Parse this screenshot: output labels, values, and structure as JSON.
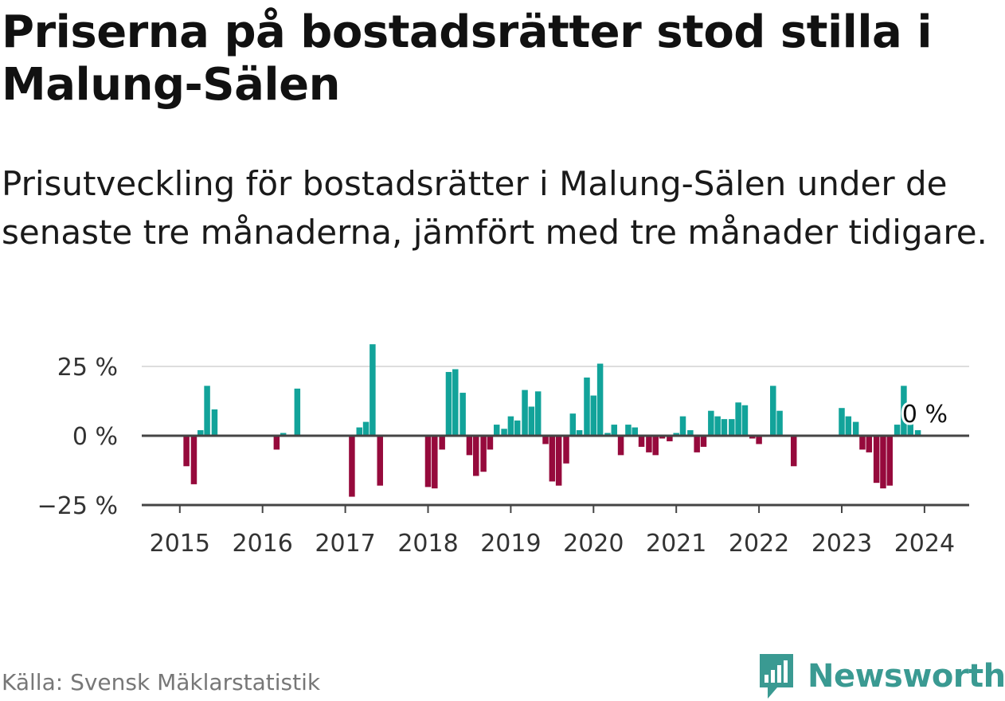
{
  "title": "Priserna på bostadsrätter stod stilla i Malung-Sälen",
  "subtitle": "Prisutveckling för bostadsrätter i Malung-Sälen under de senaste tre månaderna, jämfört med tre månader tidigare.",
  "source": "Källa: Svensk Mäklarstatistik",
  "brand": "Newsworthy",
  "colors": {
    "positive": "#12a39a",
    "negative": "#960a3c",
    "brand": "#3a9a92",
    "axis": "#444444",
    "grid": "#dddddd"
  },
  "chart_data": {
    "type": "bar",
    "title": "Priserna på bostadsrätter stod stilla i Malung-Sälen",
    "xlabel": "",
    "ylabel": "",
    "ylim": [
      -25,
      35
    ],
    "x_range": [
      2014.54,
      2024.54
    ],
    "y_ticks": [
      {
        "value": 25,
        "label": "25 %"
      },
      {
        "value": 0,
        "label": "0 %"
      },
      {
        "value": -25,
        "label": "−25 %"
      }
    ],
    "x_ticks": [
      {
        "value": 2015,
        "label": "2015"
      },
      {
        "value": 2016,
        "label": "2016"
      },
      {
        "value": 2017,
        "label": "2017"
      },
      {
        "value": 2018,
        "label": "2018"
      },
      {
        "value": 2019,
        "label": "2019"
      },
      {
        "value": 2020,
        "label": "2020"
      },
      {
        "value": 2021,
        "label": "2021"
      },
      {
        "value": 2022,
        "label": "2022"
      },
      {
        "value": 2023,
        "label": "2023"
      },
      {
        "value": 2024,
        "label": "2024"
      }
    ],
    "annotation": {
      "label": "0 %",
      "x": 2024.0,
      "y": 0
    },
    "series": [
      {
        "name": "Prisutveckling",
        "points": [
          {
            "x": 2015.08,
            "y": -11
          },
          {
            "x": 2015.17,
            "y": -17.5
          },
          {
            "x": 2015.25,
            "y": 2
          },
          {
            "x": 2015.33,
            "y": 18
          },
          {
            "x": 2015.42,
            "y": 9.5
          },
          {
            "x": 2016.17,
            "y": -5
          },
          {
            "x": 2016.25,
            "y": 1
          },
          {
            "x": 2016.42,
            "y": 17
          },
          {
            "x": 2017.08,
            "y": -22
          },
          {
            "x": 2017.17,
            "y": 3
          },
          {
            "x": 2017.25,
            "y": 5
          },
          {
            "x": 2017.33,
            "y": 33
          },
          {
            "x": 2017.42,
            "y": -18
          },
          {
            "x": 2018.0,
            "y": -18.5
          },
          {
            "x": 2018.08,
            "y": -19
          },
          {
            "x": 2018.17,
            "y": -5
          },
          {
            "x": 2018.25,
            "y": 23
          },
          {
            "x": 2018.33,
            "y": 24
          },
          {
            "x": 2018.42,
            "y": 15.5
          },
          {
            "x": 2018.5,
            "y": -7
          },
          {
            "x": 2018.58,
            "y": -14.5
          },
          {
            "x": 2018.67,
            "y": -13
          },
          {
            "x": 2018.75,
            "y": -5
          },
          {
            "x": 2018.83,
            "y": 4
          },
          {
            "x": 2018.92,
            "y": 2.5
          },
          {
            "x": 2019.0,
            "y": 7
          },
          {
            "x": 2019.08,
            "y": 5.5
          },
          {
            "x": 2019.17,
            "y": 16.5
          },
          {
            "x": 2019.25,
            "y": 10.5
          },
          {
            "x": 2019.33,
            "y": 16
          },
          {
            "x": 2019.42,
            "y": -3
          },
          {
            "x": 2019.5,
            "y": -16.5
          },
          {
            "x": 2019.58,
            "y": -18
          },
          {
            "x": 2019.67,
            "y": -10
          },
          {
            "x": 2019.75,
            "y": 8
          },
          {
            "x": 2019.83,
            "y": 2
          },
          {
            "x": 2019.92,
            "y": 21
          },
          {
            "x": 2020.0,
            "y": 14.5
          },
          {
            "x": 2020.08,
            "y": 26
          },
          {
            "x": 2020.17,
            "y": 1
          },
          {
            "x": 2020.25,
            "y": 4
          },
          {
            "x": 2020.33,
            "y": -7
          },
          {
            "x": 2020.42,
            "y": 4
          },
          {
            "x": 2020.5,
            "y": 3
          },
          {
            "x": 2020.58,
            "y": -4
          },
          {
            "x": 2020.67,
            "y": -6
          },
          {
            "x": 2020.75,
            "y": -7
          },
          {
            "x": 2020.83,
            "y": -1
          },
          {
            "x": 2020.92,
            "y": -2
          },
          {
            "x": 2021.0,
            "y": 1
          },
          {
            "x": 2021.08,
            "y": 7
          },
          {
            "x": 2021.17,
            "y": 2
          },
          {
            "x": 2021.25,
            "y": -6
          },
          {
            "x": 2021.33,
            "y": -4
          },
          {
            "x": 2021.42,
            "y": 9
          },
          {
            "x": 2021.5,
            "y": 7
          },
          {
            "x": 2021.58,
            "y": 6
          },
          {
            "x": 2021.67,
            "y": 6
          },
          {
            "x": 2021.75,
            "y": 12
          },
          {
            "x": 2021.83,
            "y": 11
          },
          {
            "x": 2021.92,
            "y": -1
          },
          {
            "x": 2022.0,
            "y": -3
          },
          {
            "x": 2022.17,
            "y": 18
          },
          {
            "x": 2022.25,
            "y": 9
          },
          {
            "x": 2022.42,
            "y": -11
          },
          {
            "x": 2023.0,
            "y": 10
          },
          {
            "x": 2023.08,
            "y": 7
          },
          {
            "x": 2023.17,
            "y": 5
          },
          {
            "x": 2023.25,
            "y": -5
          },
          {
            "x": 2023.33,
            "y": -6
          },
          {
            "x": 2023.42,
            "y": -17
          },
          {
            "x": 2023.5,
            "y": -19
          },
          {
            "x": 2023.58,
            "y": -18
          },
          {
            "x": 2023.67,
            "y": 4
          },
          {
            "x": 2023.75,
            "y": 18
          },
          {
            "x": 2023.83,
            "y": 4.5
          },
          {
            "x": 2023.92,
            "y": 2
          },
          {
            "x": 2024.0,
            "y": 0
          }
        ]
      }
    ]
  }
}
